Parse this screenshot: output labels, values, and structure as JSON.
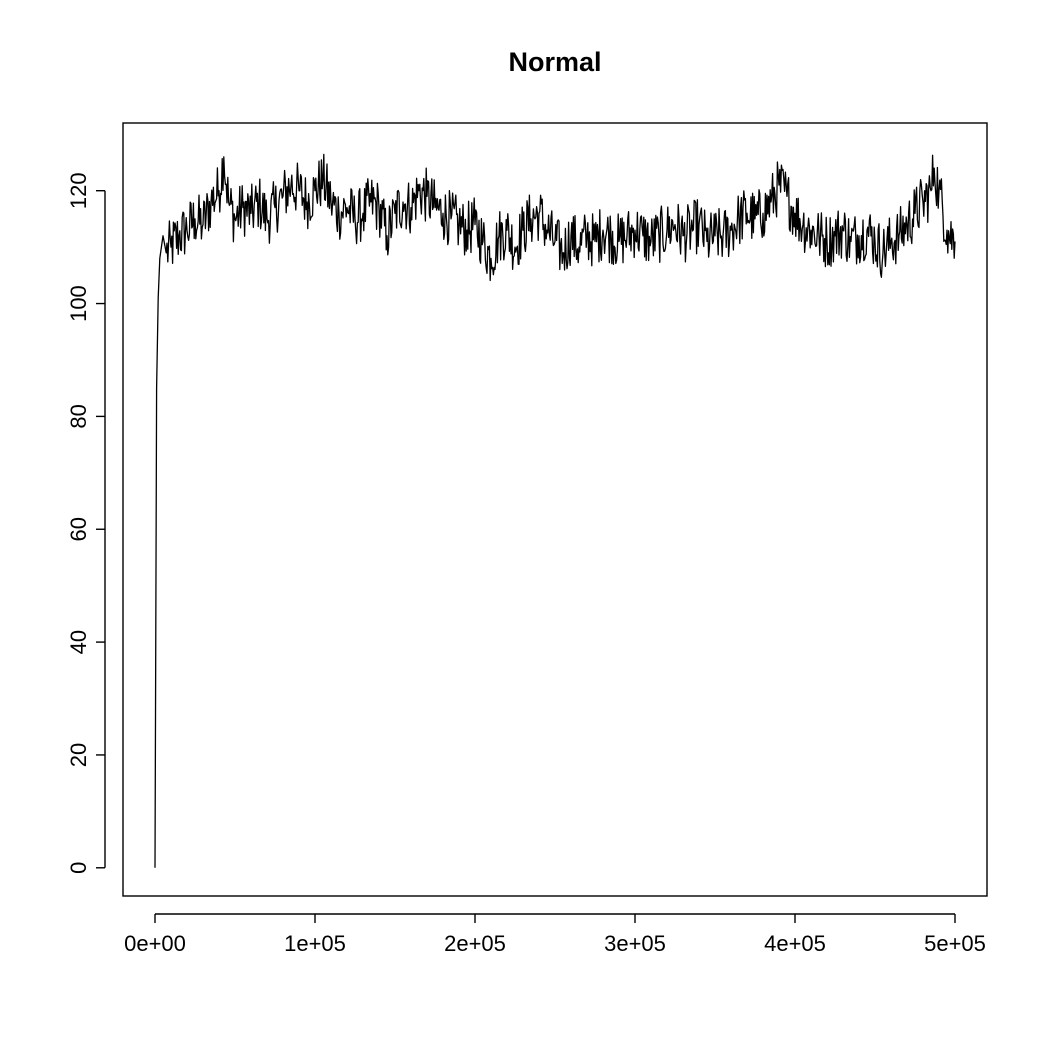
{
  "chart_data": {
    "type": "line",
    "title": "Normal",
    "xlabel": "",
    "ylabel": "",
    "xlim": [
      -20000,
      520000
    ],
    "ylim": [
      -5,
      132
    ],
    "x_ticks": [
      0,
      100000,
      200000,
      300000,
      400000,
      500000
    ],
    "x_tick_labels": [
      "0e+00",
      "1e+05",
      "2e+05",
      "3e+05",
      "4e+05",
      "5e+05"
    ],
    "y_ticks": [
      0,
      20,
      40,
      60,
      80,
      100,
      120
    ],
    "y_tick_labels": [
      "0",
      "20",
      "40",
      "60",
      "80",
      "100",
      "120"
    ],
    "grid": false,
    "legend": "none",
    "color": "#000000",
    "series": [
      {
        "x": [
          0,
          1000,
          2000,
          3000,
          5000,
          7000,
          10000,
          15000,
          20000,
          25000,
          30000,
          35000,
          40000,
          43000,
          46000,
          50000,
          55000,
          60000,
          65000,
          70000,
          75000,
          80000,
          85000,
          90000,
          95000,
          100000,
          105000,
          110000,
          115000,
          120000,
          125000,
          130000,
          135000,
          140000,
          145000,
          150000,
          155000,
          160000,
          165000,
          170000,
          175000,
          180000,
          185000,
          190000,
          195000,
          200000,
          205000,
          210000,
          215000,
          220000,
          225000,
          230000,
          235000,
          240000,
          245000,
          250000,
          255000,
          260000,
          265000,
          270000,
          275000,
          280000,
          285000,
          290000,
          295000,
          300000,
          305000,
          310000,
          315000,
          320000,
          325000,
          330000,
          335000,
          340000,
          345000,
          350000,
          355000,
          360000,
          365000,
          370000,
          375000,
          380000,
          385000,
          390000,
          395000,
          400000,
          405000,
          410000,
          415000,
          420000,
          425000,
          430000,
          435000,
          440000,
          445000,
          450000,
          455000,
          460000,
          465000,
          470000,
          475000,
          480000,
          485000,
          487000,
          490000,
          495000,
          500000
        ],
        "y": [
          0,
          85,
          101,
          108,
          112,
          109,
          110,
          112,
          113,
          115,
          114,
          118,
          120,
          126,
          118,
          115,
          117,
          116,
          118,
          115,
          117,
          119,
          121,
          120,
          118,
          120,
          122,
          118,
          116,
          117,
          115,
          116,
          118,
          117,
          112,
          116,
          118,
          117,
          120,
          119,
          117,
          116,
          115,
          114,
          113,
          114,
          111,
          108,
          112,
          113,
          110,
          113,
          115,
          116,
          113,
          111,
          109,
          112,
          110,
          112,
          111,
          113,
          112,
          111,
          112,
          113,
          112,
          111,
          112,
          113,
          114,
          112,
          113,
          114,
          111,
          112,
          112,
          113,
          115,
          116,
          115,
          116,
          118,
          121,
          119,
          116,
          114,
          113,
          112,
          111,
          112,
          113,
          111,
          112,
          113,
          111,
          109,
          111,
          112,
          114,
          116,
          118,
          120,
          124,
          120,
          113,
          111
        ]
      }
    ]
  }
}
